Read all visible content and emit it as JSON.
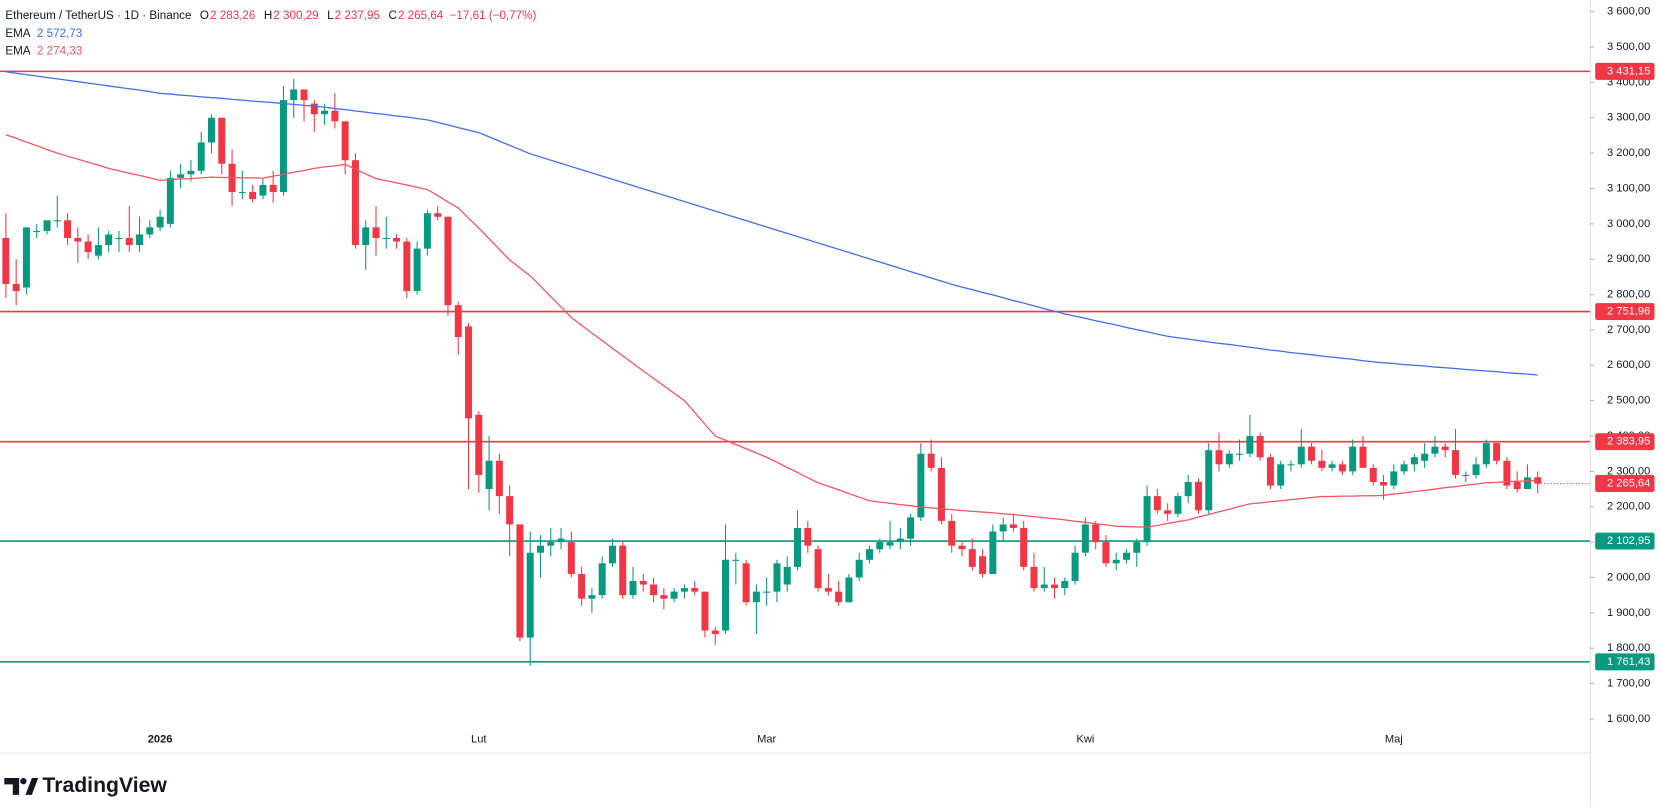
{
  "chart_data": {
    "type": "candlestick",
    "title": "Ethereum / TetherUS · 1D · Binance",
    "ohlc": [
      {
        "key": "O",
        "text": "2 283,26"
      },
      {
        "key": "H",
        "text": "2 300,29"
      },
      {
        "key": "L",
        "text": "2 237,95"
      },
      {
        "key": "C",
        "text": "2 265,64"
      }
    ],
    "change": "−17,61 (−0,77%)",
    "header_value_color": "#f23645",
    "up_color": "#089981",
    "down_color": "#f23645",
    "grid": false,
    "ylim": [
      1505,
      3633
    ],
    "yticks": [
      {
        "value": 1600,
        "label": "1 600,00"
      },
      {
        "value": 1700,
        "label": "1 700,00"
      },
      {
        "value": 1800,
        "label": "1 800,00"
      },
      {
        "value": 1900,
        "label": "1 900,00"
      },
      {
        "value": 2000,
        "label": "2 000,00"
      },
      {
        "value": 2100,
        "label": "2 100,00"
      },
      {
        "value": 2200,
        "label": "2 200,00"
      },
      {
        "value": 2300,
        "label": "2 300,00"
      },
      {
        "value": 2400,
        "label": "2 400,00"
      },
      {
        "value": 2500,
        "label": "2 500,00"
      },
      {
        "value": 2600,
        "label": "2 600,00"
      },
      {
        "value": 2700,
        "label": "2 700,00"
      },
      {
        "value": 2800,
        "label": "2 800,00"
      },
      {
        "value": 2900,
        "label": "2 900,00"
      },
      {
        "value": 3000,
        "label": "3 000,00"
      },
      {
        "value": 3100,
        "label": "3 100,00"
      },
      {
        "value": 3200,
        "label": "3 200,00"
      },
      {
        "value": 3300,
        "label": "3 300,00"
      },
      {
        "value": 3400,
        "label": "3 400,00"
      },
      {
        "value": 3500,
        "label": "3 500,00"
      },
      {
        "value": 3600,
        "label": "3 600,00"
      }
    ],
    "categories": [
      null,
      null,
      null,
      null,
      null,
      null,
      null,
      null,
      null,
      null,
      null,
      null,
      null,
      null,
      null,
      "2026",
      null,
      null,
      null,
      null,
      null,
      null,
      null,
      null,
      null,
      null,
      null,
      null,
      null,
      null,
      null,
      null,
      null,
      null,
      null,
      null,
      null,
      null,
      null,
      null,
      null,
      null,
      null,
      null,
      null,
      null,
      "Lut",
      null,
      null,
      null,
      null,
      null,
      null,
      null,
      null,
      null,
      null,
      null,
      null,
      null,
      null,
      null,
      null,
      null,
      null,
      null,
      null,
      null,
      null,
      null,
      null,
      null,
      null,
      null,
      "Mar",
      null,
      null,
      null,
      null,
      null,
      null,
      null,
      null,
      null,
      null,
      null,
      null,
      null,
      null,
      null,
      null,
      null,
      null,
      null,
      null,
      null,
      null,
      null,
      null,
      null,
      null,
      null,
      null,
      null,
      null,
      "Kwi",
      null,
      null,
      null,
      null,
      null,
      null,
      null,
      null,
      null,
      null,
      null,
      null,
      null,
      null,
      null,
      null,
      null,
      null,
      null,
      null,
      null,
      null,
      null,
      null,
      null,
      null,
      null,
      null,
      null,
      "Maj",
      null,
      null,
      null,
      null,
      null,
      null,
      null,
      null,
      null,
      null,
      null,
      null,
      null,
      null
    ],
    "open": [
      2960,
      2830,
      2820,
      2980,
      2980,
      3010,
      3010,
      2960,
      2950,
      2910,
      2940,
      2960,
      2960,
      2940,
      2970,
      2990,
      3000,
      3130,
      3140,
      3150,
      3230,
      3300,
      3170,
      3090,
      3090,
      3080,
      3110,
      3090,
      3350,
      3380,
      3340,
      3310,
      3320,
      3290,
      3180,
      2940,
      2990,
      2960,
      2960,
      2950,
      2810,
      2930,
      3030,
      3020,
      2770,
      2710,
      2460,
      2250,
      2330,
      2230,
      2150,
      1830,
      2070,
      2090,
      2100,
      2100,
      2010,
      1940,
      1950,
      2040,
      2090,
      1950,
      1990,
      1980,
      1950,
      1940,
      1960,
      1970,
      1960,
      1850,
      1850,
      2050,
      2040,
      1930,
      1960,
      1960,
      1980,
      2030,
      2140,
      2080,
      1970,
      1960,
      1930,
      2000,
      2050,
      2080,
      2090,
      2100,
      2110,
      2170,
      2350,
      2310,
      2160,
      2090,
      2080,
      2060,
      2010,
      2130,
      2150,
      2140,
      2030,
      1970,
      1980,
      1970,
      1990,
      2070,
      2150,
      2100,
      2040,
      2050,
      2070,
      2100,
      2230,
      2190,
      2180,
      2230,
      2270,
      2190,
      2360,
      2320,
      2350,
      2350,
      2400,
      2340,
      2260,
      2320,
      2320,
      2370,
      2330,
      2310,
      2320,
      2300,
      2370,
      2310,
      2270,
      2260,
      2300,
      2320,
      2330,
      2350,
      2370,
      2360,
      2290,
      2290,
      2320,
      2380,
      2330,
      2270,
      2250,
      2283.26
    ],
    "high": [
      3030,
      2900,
      2990,
      3000,
      3010,
      3080,
      3030,
      2990,
      2970,
      2990,
      2980,
      2980,
      3050,
      3020,
      3010,
      3040,
      3150,
      3170,
      3180,
      3260,
      3310,
      3300,
      3210,
      3150,
      3110,
      3130,
      3150,
      3390,
      3410,
      3380,
      3350,
      3340,
      3370,
      3290,
      3200,
      3010,
      3050,
      3020,
      2970,
      2960,
      2950,
      3040,
      3050,
      3020,
      2780,
      2720,
      2470,
      2400,
      2350,
      2260,
      2150,
      2130,
      2120,
      2140,
      2140,
      2130,
      2030,
      1970,
      2060,
      2110,
      2100,
      2030,
      2010,
      2000,
      1970,
      1970,
      1980,
      1990,
      1960,
      1860,
      2150,
      2070,
      2050,
      1980,
      2000,
      2050,
      2060,
      2190,
      2160,
      2090,
      2010,
      1990,
      2010,
      2070,
      2090,
      2110,
      2160,
      2140,
      2180,
      2380,
      2390,
      2340,
      2180,
      2100,
      2110,
      2080,
      2150,
      2170,
      2180,
      2160,
      2070,
      2030,
      2000,
      2000,
      2090,
      2170,
      2160,
      2120,
      2070,
      2080,
      2110,
      2260,
      2250,
      2210,
      2240,
      2290,
      2280,
      2380,
      2410,
      2360,
      2390,
      2460,
      2410,
      2350,
      2330,
      2330,
      2420,
      2380,
      2360,
      2330,
      2330,
      2390,
      2400,
      2320,
      2290,
      2320,
      2330,
      2350,
      2380,
      2400,
      2380,
      2420,
      2300,
      2340,
      2390,
      2380,
      2340,
      2300,
      2320,
      2300.29
    ],
    "low": [
      2790,
      2770,
      2800,
      2960,
      2970,
      2990,
      2940,
      2890,
      2900,
      2900,
      2920,
      2920,
      2920,
      2920,
      2960,
      2980,
      2990,
      3100,
      3120,
      3140,
      3200,
      3140,
      3050,
      3070,
      3060,
      3070,
      3060,
      3080,
      3300,
      3290,
      3260,
      3280,
      3270,
      3140,
      2930,
      2870,
      2910,
      2930,
      2930,
      2790,
      2800,
      2910,
      3010,
      2740,
      2630,
      2250,
      2240,
      2190,
      2180,
      2060,
      1820,
      1750,
      2000,
      2060,
      2080,
      2000,
      1920,
      1900,
      1940,
      2030,
      1940,
      1940,
      1960,
      1930,
      1910,
      1930,
      1940,
      1950,
      1830,
      1810,
      1840,
      1980,
      1920,
      1840,
      1920,
      1930,
      1960,
      2020,
      2070,
      1960,
      1950,
      1920,
      1930,
      1990,
      2040,
      2070,
      2080,
      2080,
      2090,
      2160,
      2300,
      2150,
      2070,
      2060,
      2020,
      2000,
      2010,
      2100,
      2130,
      2020,
      1960,
      1960,
      1940,
      1950,
      1980,
      2060,
      2080,
      2030,
      2020,
      2040,
      2030,
      2090,
      2180,
      2160,
      2170,
      2210,
      2180,
      2180,
      2300,
      2310,
      2330,
      2340,
      2330,
      2250,
      2250,
      2300,
      2310,
      2320,
      2300,
      2300,
      2290,
      2290,
      2310,
      2260,
      2220,
      2250,
      2290,
      2300,
      2310,
      2340,
      2340,
      2280,
      2270,
      2280,
      2310,
      2320,
      2250,
      2240,
      2250,
      2237.95
    ],
    "close": [
      2830,
      2810,
      2990,
      2980,
      3010,
      3010,
      2960,
      2950,
      2920,
      2940,
      2970,
      2960,
      2940,
      2970,
      2990,
      3020,
      3130,
      3140,
      3150,
      3230,
      3300,
      3170,
      3090,
      3090,
      3070,
      3110,
      3090,
      3350,
      3380,
      3350,
      3310,
      3320,
      3290,
      3180,
      2940,
      2990,
      2960,
      2960,
      2950,
      2810,
      2930,
      3030,
      3020,
      2770,
      2680,
      2450,
      2290,
      2330,
      2230,
      2150,
      1830,
      2070,
      2090,
      2100,
      2110,
      2010,
      1940,
      1950,
      2040,
      2090,
      1950,
      1990,
      1980,
      1950,
      1940,
      1960,
      1970,
      1960,
      1850,
      1840,
      2050,
      2050,
      1930,
      1960,
      1960,
      2040,
      2030,
      2140,
      2090,
      1970,
      1960,
      1930,
      2000,
      2050,
      2080,
      2100,
      2100,
      2110,
      2170,
      2350,
      2310,
      2160,
      2090,
      2080,
      2030,
      2010,
      2130,
      2150,
      2140,
      2030,
      1970,
      1980,
      1970,
      1990,
      2070,
      2150,
      2100,
      2040,
      2050,
      2070,
      2100,
      2230,
      2190,
      2180,
      2230,
      2270,
      2190,
      2360,
      2320,
      2350,
      2350,
      2400,
      2340,
      2260,
      2320,
      2320,
      2370,
      2330,
      2310,
      2320,
      2300,
      2370,
      2310,
      2270,
      2260,
      2300,
      2320,
      2340,
      2350,
      2370,
      2360,
      2290,
      2290,
      2320,
      2380,
      2330,
      2260,
      2250,
      2283,
      2265.64
    ],
    "series": [
      {
        "name": "EMA",
        "legend_value": "2 572,73",
        "color": "#3f6df0",
        "values": [
          3430,
          3426,
          3422,
          3418,
          3414,
          3410,
          3406,
          3402,
          3398,
          3394,
          3390,
          3386,
          3382,
          3378,
          3374,
          3369,
          3367,
          3364,
          3362,
          3359,
          3357,
          3355,
          3352,
          3350,
          3347,
          3345,
          3343,
          3340,
          3338,
          3335,
          3333,
          3330,
          3326,
          3323,
          3319,
          3316,
          3312,
          3309,
          3305,
          3302,
          3298,
          3294,
          3287,
          3280,
          3272,
          3265,
          3258,
          3246,
          3234,
          3222,
          3210,
          3198,
          3189,
          3180,
          3171,
          3162,
          3153,
          3144,
          3135,
          3126,
          3117,
          3108,
          3099,
          3090,
          3081,
          3072,
          3063,
          3054,
          3045,
          3036,
          3027,
          3018,
          3009,
          3000,
          2991,
          2982,
          2973,
          2964,
          2955,
          2946,
          2937,
          2928,
          2919,
          2910,
          2901,
          2892,
          2883,
          2874,
          2865,
          2856,
          2847,
          2838,
          2829,
          2821,
          2814,
          2806,
          2799,
          2791,
          2783,
          2776,
          2768,
          2760,
          2753,
          2745,
          2739,
          2733,
          2726,
          2720,
          2714,
          2707,
          2701,
          2695,
          2688,
          2682,
          2678,
          2674,
          2670,
          2666,
          2662,
          2659,
          2655,
          2651,
          2647,
          2643,
          2640,
          2636,
          2633,
          2630,
          2626,
          2623,
          2620,
          2617,
          2613,
          2610,
          2607,
          2605,
          2602,
          2600,
          2598,
          2595,
          2593,
          2591,
          2588,
          2586,
          2584,
          2582,
          2579,
          2577,
          2575,
          2572.73
        ]
      },
      {
        "name": "EMA",
        "legend_value": "2 274,33",
        "color": "#f7525f",
        "values": [
          3252,
          3242,
          3231,
          3221,
          3210,
          3200,
          3191,
          3183,
          3174,
          3166,
          3157,
          3150,
          3143,
          3137,
          3130,
          3123,
          3125,
          3127,
          3128,
          3130,
          3132,
          3131,
          3131,
          3130,
          3130,
          3129,
          3135,
          3140,
          3146,
          3151,
          3157,
          3161,
          3164,
          3168,
          3155,
          3141,
          3128,
          3122,
          3116,
          3110,
          3103,
          3097,
          3080,
          3062,
          3045,
          3016,
          2988,
          2958,
          2928,
          2898,
          2875,
          2853,
          2824,
          2794,
          2765,
          2735,
          2713,
          2691,
          2670,
          2648,
          2627,
          2605,
          2584,
          2563,
          2542,
          2521,
          2500,
          2467,
          2433,
          2400,
          2388,
          2376,
          2364,
          2352,
          2340,
          2326,
          2311,
          2297,
          2282,
          2268,
          2258,
          2248,
          2237,
          2227,
          2217,
          2213,
          2210,
          2206,
          2203,
          2199,
          2197,
          2194,
          2192,
          2189,
          2187,
          2185,
          2183,
          2180,
          2178,
          2175,
          2172,
          2169,
          2166,
          2163,
          2159,
          2156,
          2152,
          2149,
          2145,
          2144,
          2143,
          2142,
          2147,
          2153,
          2158,
          2163,
          2171,
          2178,
          2186,
          2193,
          2201,
          2208,
          2211,
          2214,
          2217,
          2220,
          2223,
          2226,
          2229,
          2229,
          2230,
          2230,
          2231,
          2231,
          2232,
          2236,
          2239,
          2243,
          2246,
          2250,
          2254,
          2257,
          2261,
          2264,
          2268,
          2269,
          2271,
          2272,
          2273,
          2274.33
        ]
      }
    ],
    "levels": [
      {
        "value": 3431.15,
        "label": "3 431,15",
        "color": "#f23645"
      },
      {
        "value": 2751.96,
        "label": "2 751,96",
        "color": "#f23645"
      },
      {
        "value": 2383.95,
        "label": "2 383,95",
        "color": "#f23645"
      },
      {
        "value": 2102.95,
        "label": "2 102,95",
        "color": "#089981"
      },
      {
        "value": 1761.43,
        "label": "1 761,43",
        "color": "#089981"
      }
    ],
    "last_price_label": "2 265,64",
    "brand": "TradingView"
  }
}
